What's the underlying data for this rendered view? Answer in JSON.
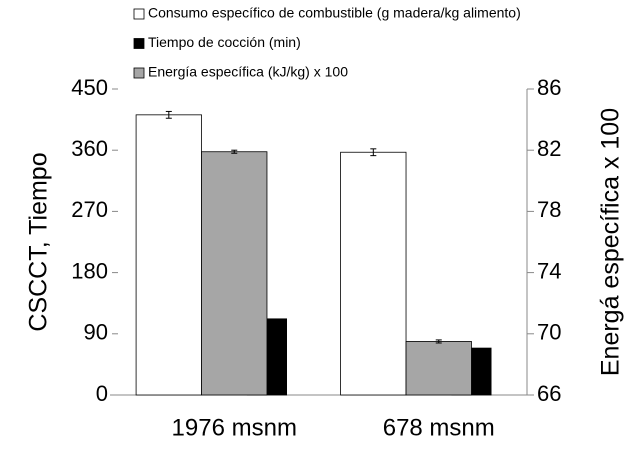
{
  "chart_data": {
    "type": "bar",
    "categories": [
      "1976 msnm",
      "678 msnm"
    ],
    "series": [
      {
        "name": "Consumo específico de combustible (g madera/kg alimento)",
        "color": "#ffffff",
        "values": [
          412,
          357
        ],
        "errors": [
          5,
          5
        ]
      },
      {
        "name": "Tiempo de cocción (min)",
        "color": "#000000",
        "values": [
          112,
          69
        ]
      },
      {
        "name": "Energía específica (kJ/kg) x 100",
        "color": "#a6a6a6",
        "values": [
          81.9,
          69.5
        ],
        "errors": [
          0.1,
          0.1
        ],
        "axis": "y2"
      }
    ],
    "y_label": "CSCCT, Tiempo",
    "y2_label": "Energá específica x 100",
    "ylim": [
      0,
      450
    ],
    "yticks": [
      0,
      90,
      180,
      270,
      360,
      450
    ],
    "y2lim": [
      66,
      86
    ],
    "y2ticks": [
      66,
      70,
      74,
      78,
      82,
      86
    ],
    "grid": false,
    "legend": "top"
  }
}
